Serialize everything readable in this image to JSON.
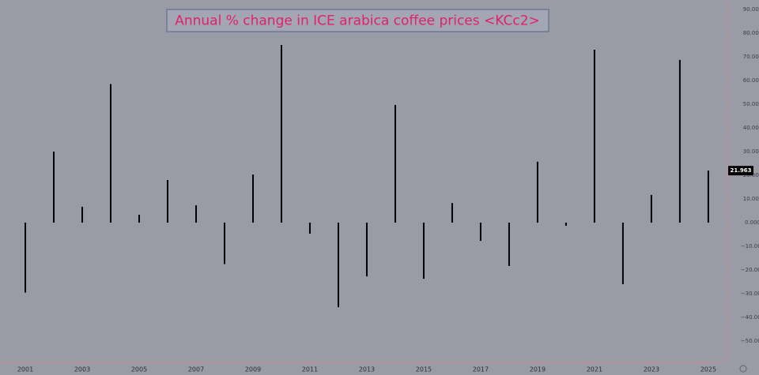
{
  "chart_data": {
    "type": "bar",
    "title": "Annual % change in ICE arabica coffee prices <KCc2>",
    "x": [
      2001,
      2002,
      2003,
      2004,
      2005,
      2006,
      2007,
      2008,
      2009,
      2010,
      2011,
      2012,
      2013,
      2014,
      2015,
      2016,
      2017,
      2018,
      2019,
      2020,
      2021,
      2022,
      2023,
      2024,
      2025
    ],
    "values": [
      -29.5,
      30,
      6.7,
      58.5,
      3.3,
      18,
      7.3,
      -17.5,
      20.3,
      75,
      -4.7,
      -35.7,
      -22.7,
      49.7,
      -23.7,
      8.3,
      -7.7,
      -18.3,
      25.7,
      -1.3,
      73,
      -26,
      11.7,
      68.7,
      21.963
    ],
    "color": "#000000",
    "xlim": [
      2000.11,
      2025.67
    ],
    "xticks": [
      2001,
      2003,
      2005,
      2007,
      2009,
      2011,
      2013,
      2015,
      2017,
      2019,
      2021,
      2023,
      2025
    ],
    "ylim": [
      -58.67,
      94
    ],
    "yticks": [
      {
        "value": 90,
        "label": "90.000"
      },
      {
        "value": 80,
        "label": "80.000"
      },
      {
        "value": 70,
        "label": "70.000"
      },
      {
        "value": 60,
        "label": "60.000"
      },
      {
        "value": 50,
        "label": "50.000"
      },
      {
        "value": 40,
        "label": "40.000"
      },
      {
        "value": 30,
        "label": "30.000"
      },
      {
        "value": 20,
        "label": "20.000"
      },
      {
        "value": 10,
        "label": "10.000"
      },
      {
        "value": 0,
        "label": "0.000"
      },
      {
        "value": -10,
        "label": "−10.000"
      },
      {
        "value": -20,
        "label": "−20.000"
      },
      {
        "value": -30,
        "label": "−30.000"
      },
      {
        "value": -40,
        "label": "−40.000"
      },
      {
        "value": -50,
        "label": "−50.000"
      }
    ]
  }
}
